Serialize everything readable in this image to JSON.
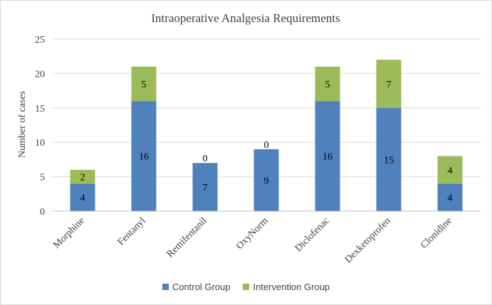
{
  "chart_data": {
    "type": "bar",
    "stacked": true,
    "title": "Intraoperative Analgesia Requirements",
    "xlabel": "",
    "ylabel": "Number of cases",
    "ylim": [
      0,
      25
    ],
    "yticks": [
      0,
      5,
      10,
      15,
      20,
      25
    ],
    "grid": true,
    "legend_position": "bottom",
    "categories": [
      "Morphine",
      "Fentanyl",
      "Remifentanil",
      "OxyNorm",
      "Diclofenac",
      "Dexketoprofen",
      "Clonidine"
    ],
    "series": [
      {
        "name": "Control Group",
        "color": "#4F81BD",
        "values": [
          4,
          16,
          7,
          9,
          16,
          15,
          4
        ]
      },
      {
        "name": "Intervention Group",
        "color": "#9BBB59",
        "values": [
          2,
          5,
          0,
          0,
          5,
          7,
          4
        ]
      }
    ]
  }
}
